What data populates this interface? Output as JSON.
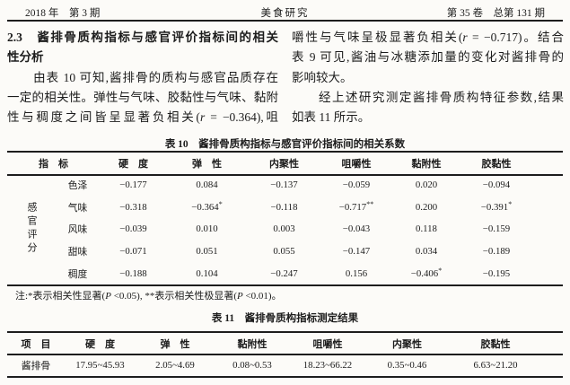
{
  "page_header": {
    "left": "2018 年　第 3 期",
    "center": "美食研究",
    "right": "第 35 卷　总第 131 期"
  },
  "body": {
    "left_lines": [
      [
        {
          "t": "2.3　酱排骨质构指标与感官评价指标间的相关"
        }
      ],
      [
        {
          "t": "性分析"
        }
      ],
      [
        {
          "t": "　　由表 10 可知,酱排骨的质构与感官品质存在"
        }
      ],
      [
        {
          "t": "一定的相关性。弹性与气味、胶黏性与气味、黏附"
        }
      ],
      [
        {
          "t": "性与稠度之间皆呈显著负相关("
        },
        {
          "t": "r",
          "i": true
        },
        {
          "t": " = −0.364),咀"
        }
      ]
    ],
    "right_lines": [
      [
        {
          "t": "嚼性与气味呈极显著负相关("
        },
        {
          "t": "r",
          "i": true
        },
        {
          "t": " = −0.717)。结合"
        }
      ],
      [
        {
          "t": "表 9 可见,酱油与冰糖添加量的变化对酱排骨的"
        }
      ],
      [
        {
          "t": "影响较大。"
        }
      ],
      [
        {
          "t": "　　经上述研究测定酱排骨质构特征参数,结果"
        }
      ],
      [
        {
          "t": "如表 11 所示。"
        }
      ]
    ]
  },
  "table10": {
    "title": "表 10　酱排骨质构指标与感官评价指标间的相关系数",
    "corner": "指　标",
    "headers": [
      "硬　度",
      "弹　性",
      "内聚性",
      "咀嚼性",
      "黏附性",
      "胶黏性"
    ],
    "group_label": "感官评分",
    "rows": [
      {
        "label": "色泽",
        "vals": [
          {
            "v": "−0.177"
          },
          {
            "v": "0.084"
          },
          {
            "v": "−0.137"
          },
          {
            "v": "−0.059"
          },
          {
            "v": "0.020"
          },
          {
            "v": "−0.094"
          }
        ]
      },
      {
        "label": "气味",
        "vals": [
          {
            "v": "−0.318"
          },
          {
            "v": "−0.364",
            "s": "*"
          },
          {
            "v": "−0.118"
          },
          {
            "v": "−0.717",
            "s": "**"
          },
          {
            "v": "0.200"
          },
          {
            "v": "−0.391",
            "s": "*"
          }
        ]
      },
      {
        "label": "风味",
        "vals": [
          {
            "v": "−0.039"
          },
          {
            "v": "0.010"
          },
          {
            "v": "0.003"
          },
          {
            "v": "−0.043"
          },
          {
            "v": "0.118"
          },
          {
            "v": "−0.159"
          }
        ]
      },
      {
        "label": "甜味",
        "vals": [
          {
            "v": "−0.071"
          },
          {
            "v": "0.051"
          },
          {
            "v": "0.055"
          },
          {
            "v": "−0.147"
          },
          {
            "v": "0.034"
          },
          {
            "v": "−0.189"
          }
        ]
      },
      {
        "label": "稠度",
        "vals": [
          {
            "v": "−0.188"
          },
          {
            "v": "0.104"
          },
          {
            "v": "−0.247"
          },
          {
            "v": "0.156"
          },
          {
            "v": "−0.406",
            "s": "*"
          },
          {
            "v": "−0.195"
          }
        ]
      }
    ]
  },
  "note": [
    {
      "t": "注:*表示相关性显著("
    },
    {
      "t": "P",
      "i": true
    },
    {
      "t": " <0.05), **表示相关性极显著("
    },
    {
      "t": "P",
      "i": true
    },
    {
      "t": " <0.01)。"
    }
  ],
  "table11": {
    "title": "表 11　酱排骨质构指标测定结果",
    "headers": [
      "项　目",
      "硬　度",
      "弹　性",
      "黏附性",
      "咀嚼性",
      "内聚性",
      "胶黏性"
    ],
    "row": [
      "酱排骨",
      "17.95~45.93",
      "2.05~4.69",
      "0.08~0.53",
      "18.23~66.22",
      "0.35~0.46",
      "6.63~21.20"
    ]
  }
}
